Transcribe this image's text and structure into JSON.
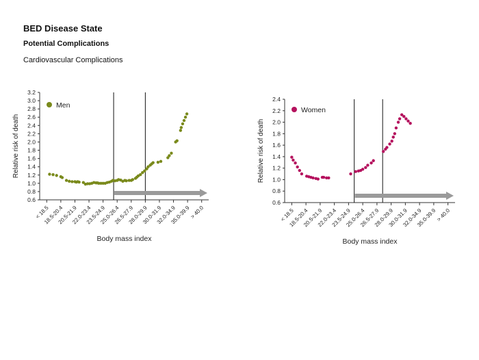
{
  "header": {
    "title": "BED Disease State",
    "subtitle": "Potential Complications",
    "section": "Cardiovascular Complications"
  },
  "colors": {
    "men": "#7a8a1c",
    "women": "#b5125e",
    "arrow": "#9a9a9a",
    "axis": "#333333"
  },
  "chart_data": [
    {
      "type": "scatter",
      "legend": "Men",
      "legend_position": "top-left",
      "xlabel": "Body mass index",
      "ylabel": "Relative risk of death",
      "ylim": [
        0.6,
        3.2
      ],
      "yticks": [
        "0.6",
        "0.8",
        "1.0",
        "1.2",
        "1.4",
        "1.6",
        "1.8",
        "2.0",
        "2.2",
        "2.4",
        "2.6",
        "2.8",
        "3.0",
        "3.2"
      ],
      "categories": [
        "< 18.5",
        "18.5-20.4",
        "20.5-21.9",
        "22.0-23.4",
        "23.5-24.9",
        "25.0-26.4",
        "26.5-27.9",
        "28.0-29.9",
        "30.0-31.9",
        "32.0-34.9",
        "35.0-39.9",
        "> 40.0"
      ],
      "vlines_at_index": [
        5.25,
        7.5
      ],
      "arrow_from_index": 5.25,
      "points": [
        [
          0.7,
          1.22
        ],
        [
          0.95,
          1.21
        ],
        [
          1.2,
          1.19
        ],
        [
          1.5,
          1.16
        ],
        [
          1.6,
          1.14
        ],
        [
          1.9,
          1.07
        ],
        [
          2.1,
          1.05
        ],
        [
          2.3,
          1.04
        ],
        [
          2.5,
          1.04
        ],
        [
          2.6,
          1.03
        ],
        [
          2.7,
          1.04
        ],
        [
          2.8,
          1.03
        ],
        [
          3.1,
          1.02
        ],
        [
          3.25,
          0.98
        ],
        [
          3.4,
          0.99
        ],
        [
          3.55,
          0.99
        ],
        [
          3.7,
          1.0
        ],
        [
          3.85,
          1.02
        ],
        [
          4.0,
          1.01
        ],
        [
          4.1,
          1.01
        ],
        [
          4.2,
          1.0
        ],
        [
          4.35,
          1.0
        ],
        [
          4.5,
          1.0
        ],
        [
          4.65,
          1.0
        ],
        [
          4.8,
          1.02
        ],
        [
          4.95,
          1.03
        ],
        [
          5.1,
          1.05
        ],
        [
          5.2,
          1.07
        ],
        [
          5.35,
          1.06
        ],
        [
          5.5,
          1.07
        ],
        [
          5.6,
          1.09
        ],
        [
          5.75,
          1.08
        ],
        [
          5.9,
          1.05
        ],
        [
          6.05,
          1.07
        ],
        [
          6.15,
          1.06
        ],
        [
          6.35,
          1.07
        ],
        [
          6.5,
          1.07
        ],
        [
          6.6,
          1.09
        ],
        [
          6.8,
          1.12
        ],
        [
          6.9,
          1.15
        ],
        [
          7.0,
          1.18
        ],
        [
          7.15,
          1.21
        ],
        [
          7.3,
          1.26
        ],
        [
          7.45,
          1.3
        ],
        [
          7.6,
          1.35
        ],
        [
          7.7,
          1.4
        ],
        [
          7.85,
          1.44
        ],
        [
          7.95,
          1.47
        ],
        [
          8.05,
          1.5
        ],
        [
          8.4,
          1.51
        ],
        [
          8.6,
          1.53
        ],
        [
          9.1,
          1.62
        ],
        [
          9.2,
          1.67
        ],
        [
          9.35,
          1.73
        ],
        [
          9.65,
          2.0
        ],
        [
          9.75,
          2.03
        ],
        [
          10.0,
          2.28
        ],
        [
          10.05,
          2.35
        ],
        [
          10.15,
          2.44
        ],
        [
          10.25,
          2.52
        ],
        [
          10.35,
          2.6
        ],
        [
          10.45,
          2.68
        ]
      ]
    },
    {
      "type": "scatter",
      "legend": "Women",
      "legend_position": "top-left",
      "xlabel": "Body mass index",
      "ylabel": "Relative risk of death",
      "ylim": [
        0.6,
        2.4
      ],
      "yticks": [
        "0.6",
        "0.8",
        "1.0",
        "1.2",
        "1.4",
        "1.6",
        "1.8",
        "2.0",
        "2.2",
        "2.4"
      ],
      "categories": [
        "< 18.5",
        "18.5-20.4",
        "20.5-21.9",
        "22.0-23.4",
        "23.5-24.9",
        "25.0-26.4",
        "26.5-27.9",
        "28.0-29.9",
        "30.0-31.9",
        "32.0-34.9",
        "35.0-39.9",
        "> 40.0"
      ],
      "vlines_at_index": [
        4.9,
        6.9
      ],
      "arrow_from_index": 4.9,
      "points": [
        [
          0.5,
          1.39
        ],
        [
          0.6,
          1.34
        ],
        [
          0.75,
          1.29
        ],
        [
          0.9,
          1.22
        ],
        [
          1.05,
          1.16
        ],
        [
          1.2,
          1.1
        ],
        [
          1.55,
          1.06
        ],
        [
          1.7,
          1.05
        ],
        [
          1.85,
          1.04
        ],
        [
          2.0,
          1.03
        ],
        [
          2.2,
          1.02
        ],
        [
          2.35,
          1.01
        ],
        [
          2.65,
          1.04
        ],
        [
          2.75,
          1.04
        ],
        [
          2.95,
          1.03
        ],
        [
          3.1,
          1.03
        ],
        [
          4.65,
          1.1
        ],
        [
          5.0,
          1.14
        ],
        [
          5.2,
          1.15
        ],
        [
          5.35,
          1.16
        ],
        [
          5.5,
          1.18
        ],
        [
          5.7,
          1.21
        ],
        [
          5.85,
          1.25
        ],
        [
          6.1,
          1.29
        ],
        [
          6.25,
          1.33
        ],
        [
          6.95,
          1.49
        ],
        [
          7.1,
          1.53
        ],
        [
          7.2,
          1.56
        ],
        [
          7.4,
          1.62
        ],
        [
          7.55,
          1.67
        ],
        [
          7.65,
          1.74
        ],
        [
          7.75,
          1.8
        ],
        [
          7.85,
          1.9
        ],
        [
          8.0,
          2.0
        ],
        [
          8.1,
          2.06
        ],
        [
          8.25,
          2.13
        ],
        [
          8.4,
          2.1
        ],
        [
          8.55,
          2.06
        ],
        [
          8.7,
          2.02
        ],
        [
          8.85,
          1.98
        ]
      ]
    }
  ]
}
